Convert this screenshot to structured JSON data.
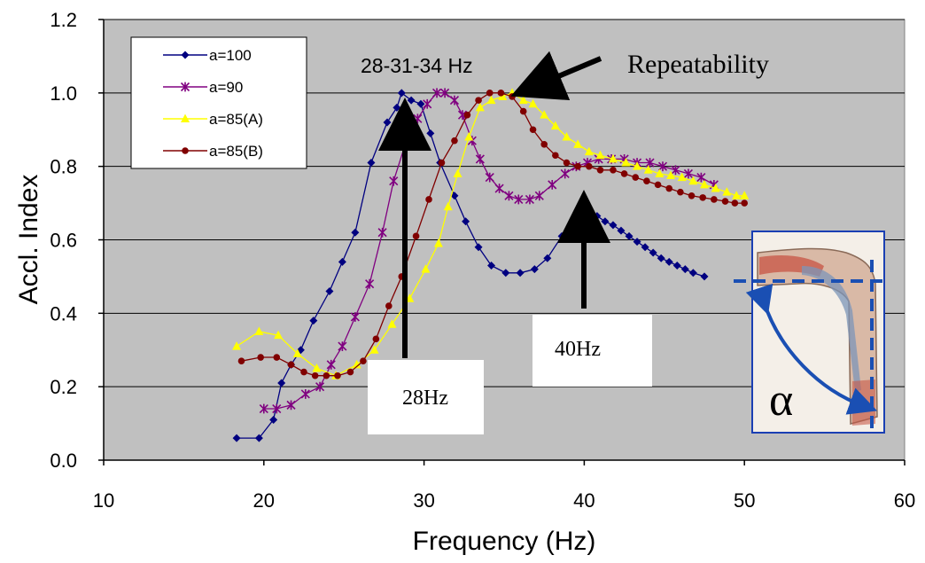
{
  "chart_data": {
    "type": "line",
    "xlabel": "Frequency (Hz)",
    "ylabel": "Accl.  Index",
    "xlim": [
      10,
      60
    ],
    "ylim": [
      0.0,
      1.2
    ],
    "x_ticks": [
      "10",
      "20",
      "30",
      "40",
      "50",
      "60"
    ],
    "y_ticks": [
      "0.0",
      "0.2",
      "0.4",
      "0.6",
      "0.8",
      "1.0",
      "1.2"
    ],
    "grid": "horizontal",
    "legend_position": "top-left",
    "plot_background": "#c0c0c0",
    "series": [
      {
        "name": "a=100",
        "color": "#000080",
        "marker": "diamond",
        "points": [
          [
            18.3,
            0.06
          ],
          [
            19.7,
            0.06
          ],
          [
            20.6,
            0.11
          ],
          [
            21.1,
            0.21
          ],
          [
            21.7,
            0.26
          ],
          [
            22.3,
            0.3
          ],
          [
            23.1,
            0.38
          ],
          [
            24.1,
            0.46
          ],
          [
            24.9,
            0.54
          ],
          [
            25.7,
            0.62
          ],
          [
            26.7,
            0.81
          ],
          [
            27.7,
            0.92
          ],
          [
            28.3,
            0.96
          ],
          [
            28.6,
            1.0
          ],
          [
            29.2,
            0.98
          ],
          [
            29.8,
            0.97
          ],
          [
            30.4,
            0.89
          ],
          [
            31.0,
            0.81
          ],
          [
            31.9,
            0.72
          ],
          [
            32.6,
            0.65
          ],
          [
            33.4,
            0.58
          ],
          [
            34.2,
            0.53
          ],
          [
            35.1,
            0.51
          ],
          [
            36.0,
            0.51
          ],
          [
            36.9,
            0.52
          ],
          [
            37.7,
            0.55
          ],
          [
            38.6,
            0.61
          ],
          [
            39.3,
            0.64
          ],
          [
            39.8,
            0.67
          ],
          [
            40.3,
            0.67
          ],
          [
            40.8,
            0.665
          ],
          [
            41.3,
            0.65
          ],
          [
            41.8,
            0.64
          ],
          [
            42.3,
            0.625
          ],
          [
            42.8,
            0.61
          ],
          [
            43.3,
            0.595
          ],
          [
            43.8,
            0.58
          ],
          [
            44.3,
            0.565
          ],
          [
            44.8,
            0.55
          ],
          [
            45.3,
            0.54
          ],
          [
            45.8,
            0.53
          ],
          [
            46.3,
            0.52
          ],
          [
            46.8,
            0.51
          ],
          [
            47.5,
            0.5
          ]
        ]
      },
      {
        "name": "a=90",
        "color": "#800080",
        "marker": "star",
        "points": [
          [
            20.0,
            0.14
          ],
          [
            20.8,
            0.14
          ],
          [
            21.7,
            0.15
          ],
          [
            22.6,
            0.18
          ],
          [
            23.5,
            0.2
          ],
          [
            24.2,
            0.26
          ],
          [
            24.9,
            0.31
          ],
          [
            25.7,
            0.39
          ],
          [
            26.6,
            0.48
          ],
          [
            27.4,
            0.62
          ],
          [
            28.1,
            0.76
          ],
          [
            28.9,
            0.87
          ],
          [
            29.6,
            0.93
          ],
          [
            30.2,
            0.97
          ],
          [
            30.8,
            1.0
          ],
          [
            31.3,
            1.0
          ],
          [
            31.9,
            0.98
          ],
          [
            32.4,
            0.94
          ],
          [
            33.0,
            0.87
          ],
          [
            33.5,
            0.82
          ],
          [
            34.1,
            0.77
          ],
          [
            34.7,
            0.74
          ],
          [
            35.3,
            0.72
          ],
          [
            35.9,
            0.71
          ],
          [
            36.6,
            0.71
          ],
          [
            37.2,
            0.72
          ],
          [
            38.0,
            0.75
          ],
          [
            38.8,
            0.78
          ],
          [
            39.5,
            0.8
          ],
          [
            40.2,
            0.81
          ],
          [
            40.9,
            0.82
          ],
          [
            41.7,
            0.82
          ],
          [
            42.5,
            0.82
          ],
          [
            43.3,
            0.81
          ],
          [
            44.1,
            0.81
          ],
          [
            44.9,
            0.8
          ],
          [
            45.7,
            0.79
          ],
          [
            46.5,
            0.78
          ],
          [
            47.3,
            0.77
          ],
          [
            48.1,
            0.75
          ]
        ]
      },
      {
        "name": "a=85(A)",
        "color": "#ffff00",
        "marker": "triangle",
        "points": [
          [
            18.3,
            0.31
          ],
          [
            19.7,
            0.35
          ],
          [
            20.9,
            0.34
          ],
          [
            22.1,
            0.29
          ],
          [
            23.3,
            0.25
          ],
          [
            24.5,
            0.23
          ],
          [
            25.8,
            0.26
          ],
          [
            26.9,
            0.3
          ],
          [
            28.0,
            0.37
          ],
          [
            29.1,
            0.44
          ],
          [
            30.1,
            0.52
          ],
          [
            30.9,
            0.59
          ],
          [
            31.5,
            0.69
          ],
          [
            32.1,
            0.78
          ],
          [
            32.8,
            0.88
          ],
          [
            33.5,
            0.96
          ],
          [
            34.2,
            0.98
          ],
          [
            34.9,
            0.99
          ],
          [
            35.5,
            1.0
          ],
          [
            36.2,
            0.98
          ],
          [
            36.8,
            0.97
          ],
          [
            37.5,
            0.94
          ],
          [
            38.2,
            0.91
          ],
          [
            38.9,
            0.88
          ],
          [
            39.6,
            0.86
          ],
          [
            40.3,
            0.84
          ],
          [
            41.0,
            0.83
          ],
          [
            41.8,
            0.82
          ],
          [
            42.6,
            0.81
          ],
          [
            43.3,
            0.8
          ],
          [
            44.0,
            0.79
          ],
          [
            44.7,
            0.78
          ],
          [
            45.4,
            0.775
          ],
          [
            46.1,
            0.77
          ],
          [
            46.8,
            0.76
          ],
          [
            47.5,
            0.75
          ],
          [
            48.2,
            0.74
          ],
          [
            48.9,
            0.73
          ],
          [
            49.5,
            0.72
          ],
          [
            50.0,
            0.72
          ]
        ]
      },
      {
        "name": "a=85(B)",
        "color": "#800000",
        "marker": "circle",
        "points": [
          [
            18.6,
            0.27
          ],
          [
            19.8,
            0.28
          ],
          [
            20.8,
            0.28
          ],
          [
            21.7,
            0.26
          ],
          [
            22.5,
            0.24
          ],
          [
            23.2,
            0.23
          ],
          [
            23.9,
            0.23
          ],
          [
            24.6,
            0.23
          ],
          [
            25.4,
            0.24
          ],
          [
            26.2,
            0.27
          ],
          [
            27.0,
            0.33
          ],
          [
            27.8,
            0.42
          ],
          [
            28.6,
            0.5
          ],
          [
            29.5,
            0.61
          ],
          [
            30.3,
            0.71
          ],
          [
            31.1,
            0.81
          ],
          [
            31.9,
            0.87
          ],
          [
            32.7,
            0.94
          ],
          [
            33.4,
            0.98
          ],
          [
            34.1,
            1.0
          ],
          [
            34.8,
            1.0
          ],
          [
            35.5,
            0.99
          ],
          [
            36.2,
            0.95
          ],
          [
            36.8,
            0.9
          ],
          [
            37.5,
            0.86
          ],
          [
            38.2,
            0.83
          ],
          [
            38.9,
            0.81
          ],
          [
            39.6,
            0.8
          ],
          [
            40.3,
            0.8
          ],
          [
            41.0,
            0.79
          ],
          [
            41.8,
            0.79
          ],
          [
            42.5,
            0.78
          ],
          [
            43.2,
            0.77
          ],
          [
            43.9,
            0.76
          ],
          [
            44.6,
            0.75
          ],
          [
            45.3,
            0.74
          ],
          [
            46.0,
            0.73
          ],
          [
            46.7,
            0.72
          ],
          [
            47.4,
            0.715
          ],
          [
            48.1,
            0.71
          ],
          [
            48.8,
            0.705
          ],
          [
            49.4,
            0.7
          ],
          [
            50.0,
            0.7
          ]
        ]
      }
    ],
    "annotations": {
      "heading": "28-31-34 Hz",
      "repeatability": "Repeatability",
      "peak1": "28Hz",
      "peak2": "40Hz",
      "angle_symbol": "α"
    }
  }
}
